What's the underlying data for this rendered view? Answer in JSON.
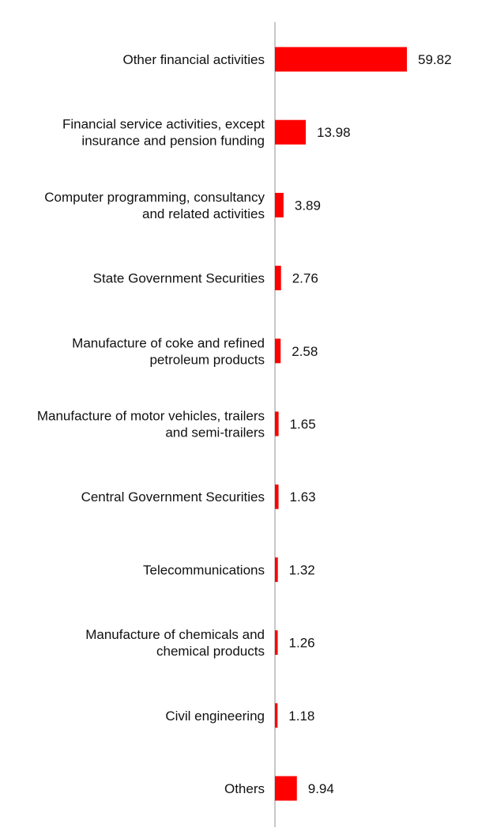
{
  "chart_data": {
    "type": "bar",
    "orientation": "horizontal",
    "categories": [
      "Other financial activities",
      "Financial service activities, except insurance and pension funding",
      "Computer programming, consultancy and related activities",
      "State Government Securities",
      "Manufacture of coke and refined petroleum products",
      "Manufacture of motor vehicles, trailers and semi-trailers",
      "Central Government Securities",
      "Telecommunications",
      "Manufacture of chemicals and chemical products",
      "Civil engineering",
      "Others"
    ],
    "category_lines": [
      [
        "Other financial activities"
      ],
      [
        "Financial service activities, except",
        "insurance and pension funding"
      ],
      [
        "Computer programming, consultancy",
        "and related activities"
      ],
      [
        "State Government Securities"
      ],
      [
        "Manufacture of coke and refined",
        "petroleum products"
      ],
      [
        "Manufacture of motor vehicles, trailers",
        "and semi-trailers"
      ],
      [
        "Central Government Securities"
      ],
      [
        "Telecommunications"
      ],
      [
        "Manufacture of chemicals and",
        "chemical products"
      ],
      [
        "Civil engineering"
      ],
      [
        "Others"
      ]
    ],
    "values": [
      59.82,
      13.98,
      3.89,
      2.76,
      2.58,
      1.65,
      1.63,
      1.32,
      1.26,
      1.18,
      9.94
    ],
    "value_labels": [
      "59.82",
      "13.98",
      "3.89",
      "2.76",
      "2.58",
      "1.65",
      "1.63",
      "1.32",
      "1.26",
      "1.18",
      "9.94"
    ],
    "bar_color": "#ff0000",
    "axis_color": "#c8c8c8",
    "xlim": [
      0,
      59.82
    ],
    "grid": false,
    "legend": "none",
    "title": "",
    "xlabel": "",
    "ylabel": ""
  }
}
